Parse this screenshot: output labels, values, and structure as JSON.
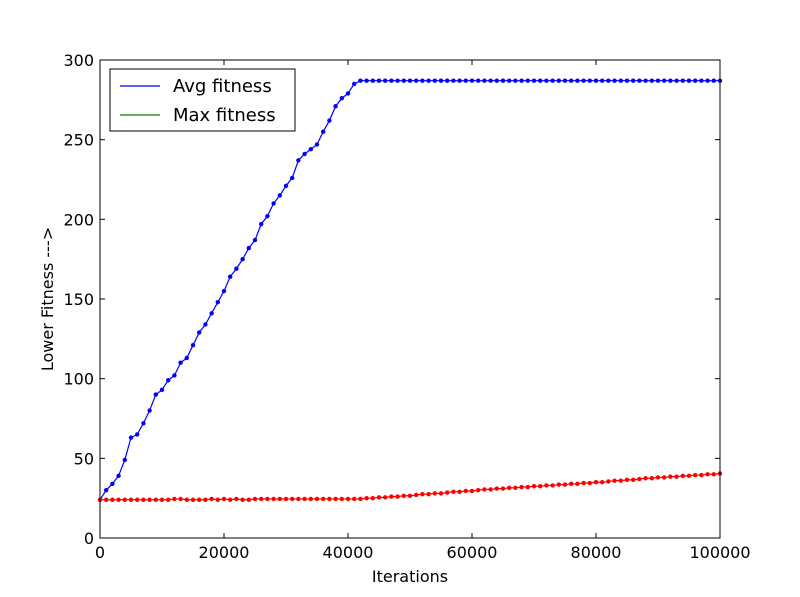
{
  "chart_data": {
    "type": "line",
    "title": "",
    "xlabel": "Iterations",
    "ylabel": "Lower Fitness --->",
    "xlim": [
      0,
      100000
    ],
    "ylim": [
      0,
      300
    ],
    "xticks": [
      0,
      20000,
      40000,
      60000,
      80000,
      100000
    ],
    "yticks": [
      0,
      50,
      100,
      150,
      200,
      250,
      300
    ],
    "xtick_labels": [
      "0",
      "20000",
      "40000",
      "60000",
      "80000",
      "100000"
    ],
    "ytick_labels": [
      "0",
      "50",
      "100",
      "150",
      "200",
      "250",
      "300"
    ],
    "grid": false,
    "legend": {
      "placement": "top-left",
      "entries": [
        {
          "label": "Avg fitness",
          "color": "#0000ff"
        },
        {
          "label": "Max fitness",
          "color": "#008000"
        }
      ]
    },
    "series": [
      {
        "name": "Avg fitness",
        "color": "#0000ff",
        "marker": "dot",
        "x": [
          0,
          1000,
          2000,
          3000,
          4000,
          5000,
          6000,
          7000,
          8000,
          9000,
          10000,
          11000,
          12000,
          13000,
          14000,
          15000,
          16000,
          17000,
          18000,
          19000,
          20000,
          21000,
          22000,
          23000,
          24000,
          25000,
          26000,
          27000,
          28000,
          29000,
          30000,
          31000,
          32000,
          33000,
          34000,
          35000,
          36000,
          37000,
          38000,
          39000,
          40000,
          41000,
          42000,
          43000,
          44000,
          45000,
          46000,
          47000,
          48000,
          49000,
          50000,
          51000,
          52000,
          53000,
          54000,
          55000,
          56000,
          57000,
          58000,
          59000,
          60000,
          61000,
          62000,
          63000,
          64000,
          65000,
          66000,
          67000,
          68000,
          69000,
          70000,
          71000,
          72000,
          73000,
          74000,
          75000,
          76000,
          77000,
          78000,
          79000,
          80000,
          81000,
          82000,
          83000,
          84000,
          85000,
          86000,
          87000,
          88000,
          89000,
          90000,
          91000,
          92000,
          93000,
          94000,
          95000,
          96000,
          97000,
          98000,
          99000,
          100000
        ],
        "y": [
          24,
          30,
          34,
          39,
          49,
          63,
          65,
          72,
          80,
          90,
          93,
          99,
          102,
          110,
          113,
          121,
          129,
          134,
          141,
          148,
          155,
          164,
          169,
          175,
          182,
          187,
          197,
          202,
          210,
          215,
          221,
          226,
          237,
          241,
          244,
          247,
          255,
          262,
          271,
          276,
          279,
          285,
          287,
          287,
          287,
          287,
          287,
          287,
          287,
          287,
          287,
          287,
          287,
          287,
          287,
          287,
          287,
          287,
          287,
          287,
          287,
          287,
          287,
          287,
          287,
          287,
          287,
          287,
          287,
          287,
          287,
          287,
          287,
          287,
          287,
          287,
          287,
          287,
          287,
          287,
          287,
          287,
          287,
          287,
          287,
          287,
          287,
          287,
          287,
          287,
          287,
          287,
          287,
          287,
          287,
          287,
          287,
          287,
          287,
          287,
          287
        ]
      },
      {
        "name": "",
        "color": "#ff0000",
        "marker": "dot",
        "x": [
          0,
          1000,
          2000,
          3000,
          4000,
          5000,
          6000,
          7000,
          8000,
          9000,
          10000,
          11000,
          12000,
          13000,
          14000,
          15000,
          16000,
          17000,
          18000,
          19000,
          20000,
          21000,
          22000,
          23000,
          24000,
          25000,
          26000,
          27000,
          28000,
          29000,
          30000,
          31000,
          32000,
          33000,
          34000,
          35000,
          36000,
          37000,
          38000,
          39000,
          40000,
          41000,
          42000,
          43000,
          44000,
          45000,
          46000,
          47000,
          48000,
          49000,
          50000,
          51000,
          52000,
          53000,
          54000,
          55000,
          56000,
          57000,
          58000,
          59000,
          60000,
          61000,
          62000,
          63000,
          64000,
          65000,
          66000,
          67000,
          68000,
          69000,
          70000,
          71000,
          72000,
          73000,
          74000,
          75000,
          76000,
          77000,
          78000,
          79000,
          80000,
          81000,
          82000,
          83000,
          84000,
          85000,
          86000,
          87000,
          88000,
          89000,
          90000,
          91000,
          92000,
          93000,
          94000,
          95000,
          96000,
          97000,
          98000,
          99000,
          100000
        ],
        "y": [
          24,
          24,
          24,
          24,
          24,
          24,
          24,
          24,
          24,
          24,
          24,
          24,
          24.5,
          24.5,
          24,
          24,
          24,
          24,
          24.5,
          24,
          24.5,
          24,
          24.5,
          24,
          24,
          24.5,
          24.5,
          24.5,
          24.5,
          24.5,
          24.5,
          24.5,
          24.5,
          24.5,
          24.5,
          24.5,
          24.5,
          24.5,
          24.5,
          24.5,
          24.5,
          24.5,
          24.5,
          25,
          25,
          25.5,
          25.5,
          26,
          26,
          26.5,
          26.5,
          27,
          27.5,
          27.5,
          28,
          28,
          28.5,
          29,
          29,
          29.5,
          29.5,
          30,
          30.5,
          30.5,
          31,
          31,
          31.5,
          31.5,
          32,
          32,
          32.5,
          32.5,
          33,
          33,
          33.5,
          33.5,
          34,
          34,
          34.5,
          34.5,
          35,
          35,
          35.5,
          36,
          36,
          36.5,
          36.5,
          37,
          37.5,
          37.5,
          38,
          38,
          38.5,
          38.5,
          39,
          39,
          39.5,
          39.5,
          40,
          40,
          40.5
        ]
      }
    ]
  }
}
